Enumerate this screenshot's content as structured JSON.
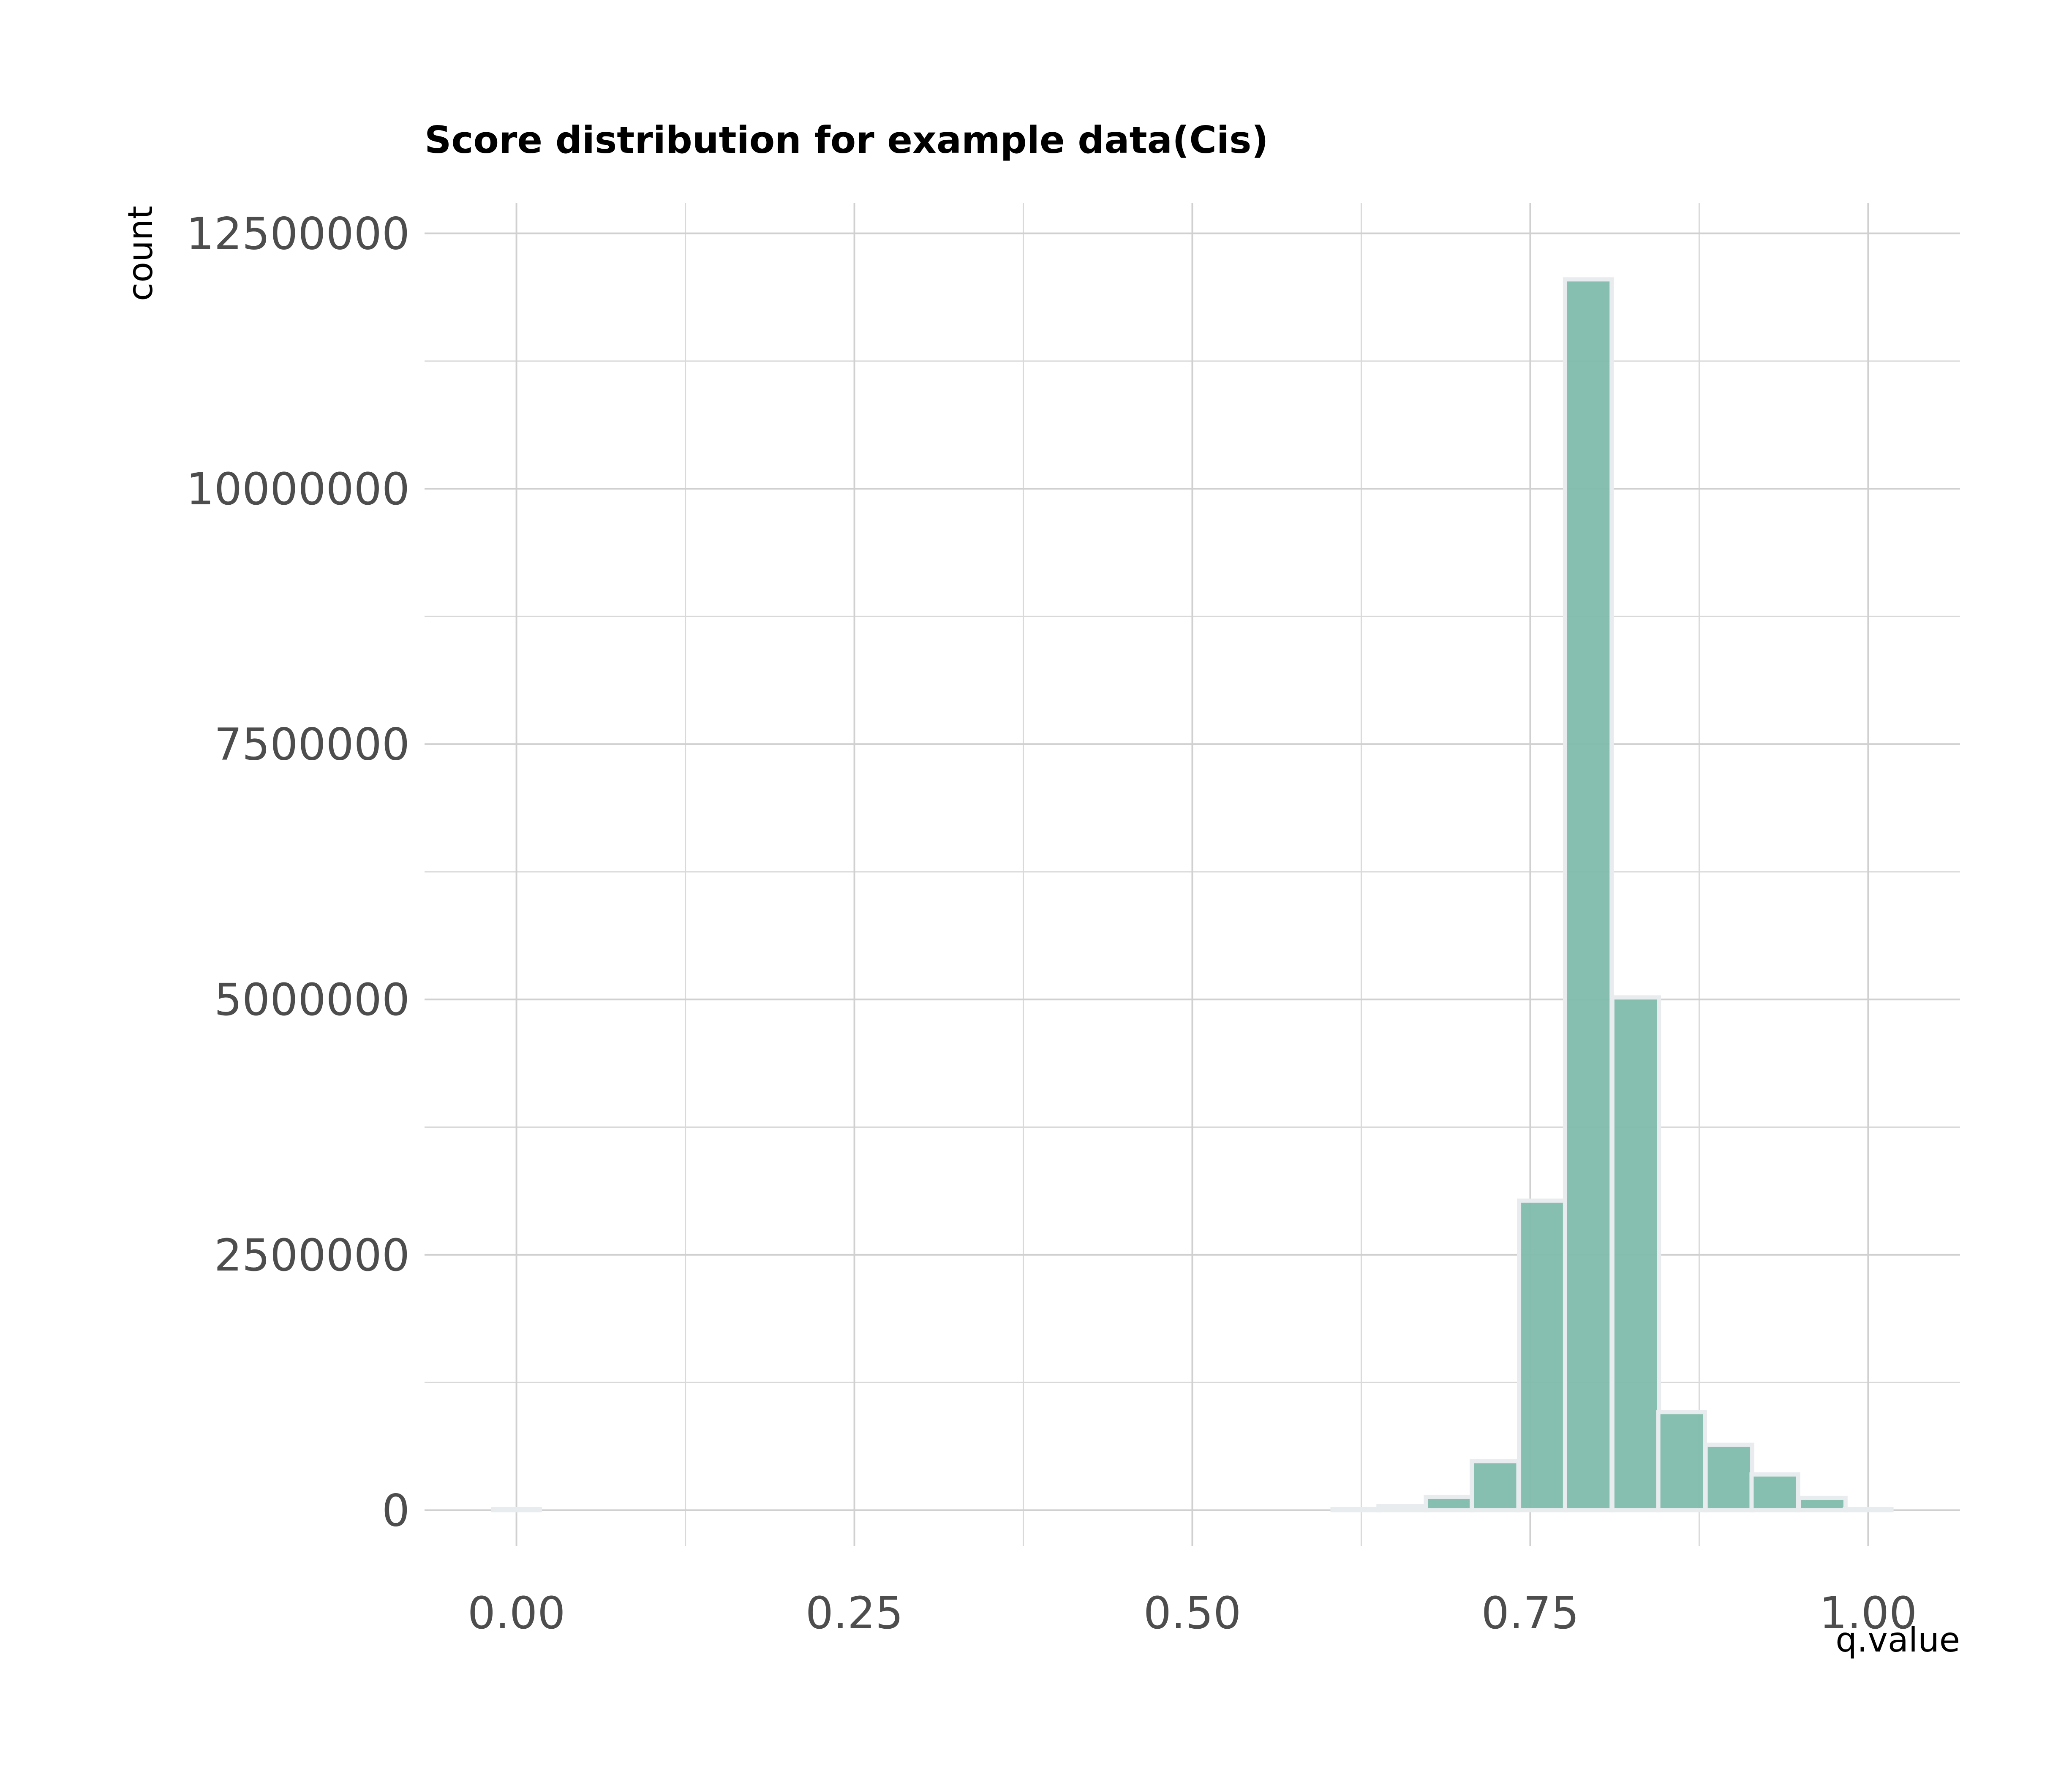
{
  "chart_data": {
    "type": "bar",
    "title": "Score distribution for example data(Cis)",
    "xlabel": "q.value",
    "ylabel": "count",
    "xlim": [
      -0.068,
      1.068
    ],
    "ylim": [
      -350000,
      12800000
    ],
    "x_ticks": [
      0.0,
      0.25,
      0.5,
      0.75,
      1.0
    ],
    "x_tick_labels": [
      "0.00",
      "0.25",
      "0.50",
      "0.75",
      "1.00"
    ],
    "y_ticks": [
      0,
      2500000,
      5000000,
      7500000,
      10000000,
      12500000
    ],
    "y_tick_labels": [
      "0",
      "2500000",
      "5000000",
      "7500000",
      "10000000",
      "12500000"
    ],
    "bin_width": 0.0345,
    "bins": [
      {
        "x": 0.0,
        "count": 10000
      },
      {
        "x": 0.034,
        "count": 0
      },
      {
        "x": 0.069,
        "count": 0
      },
      {
        "x": 0.103,
        "count": 0
      },
      {
        "x": 0.138,
        "count": 0
      },
      {
        "x": 0.172,
        "count": 0
      },
      {
        "x": 0.207,
        "count": 0
      },
      {
        "x": 0.241,
        "count": 0
      },
      {
        "x": 0.276,
        "count": 0
      },
      {
        "x": 0.31,
        "count": 0
      },
      {
        "x": 0.345,
        "count": 0
      },
      {
        "x": 0.379,
        "count": 0
      },
      {
        "x": 0.414,
        "count": 0
      },
      {
        "x": 0.448,
        "count": 0
      },
      {
        "x": 0.483,
        "count": 0
      },
      {
        "x": 0.517,
        "count": 0
      },
      {
        "x": 0.552,
        "count": 0
      },
      {
        "x": 0.586,
        "count": 0
      },
      {
        "x": 0.621,
        "count": 10000
      },
      {
        "x": 0.655,
        "count": 40000
      },
      {
        "x": 0.69,
        "count": 130000
      },
      {
        "x": 0.724,
        "count": 480000
      },
      {
        "x": 0.759,
        "count": 3030000
      },
      {
        "x": 0.793,
        "count": 12050000
      },
      {
        "x": 0.828,
        "count": 5020000
      },
      {
        "x": 0.862,
        "count": 960000
      },
      {
        "x": 0.897,
        "count": 640000
      },
      {
        "x": 0.931,
        "count": 350000
      },
      {
        "x": 0.966,
        "count": 120000
      },
      {
        "x": 1.0,
        "count": 10000
      }
    ],
    "bar_color": "#7fbcab",
    "bar_outline_color": "#e8ecee",
    "grid": true,
    "legend": "none"
  }
}
